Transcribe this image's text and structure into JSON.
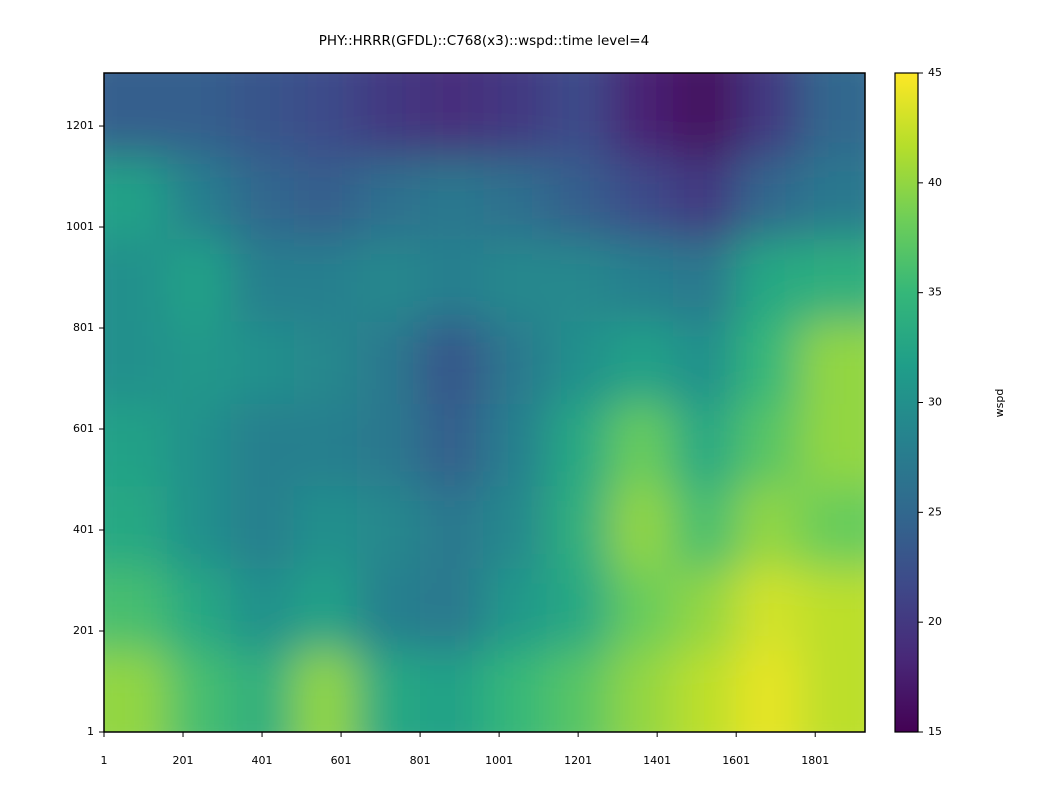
{
  "chart_data": {
    "type": "heatmap",
    "title": "PHY::HRRR(GFDL)::C768(x3)::wspd::time level=4",
    "x": [
      81,
      241,
      401,
      561,
      721,
      881,
      1041,
      1201,
      1361,
      1521,
      1681,
      1841
    ],
    "y": [
      82,
      245,
      408,
      571,
      734,
      897,
      1060,
      1223
    ],
    "z": [
      [
        40,
        36,
        34,
        40,
        33,
        32,
        35,
        37,
        40,
        42,
        44,
        42
      ],
      [
        36,
        33,
        30,
        32,
        28,
        27,
        31,
        33,
        38,
        40,
        43,
        42
      ],
      [
        33,
        30,
        28,
        30,
        29,
        27,
        29,
        34,
        40,
        36,
        40,
        38
      ],
      [
        32,
        30,
        28,
        28,
        27,
        24,
        28,
        33,
        38,
        33,
        37,
        40
      ],
      [
        30,
        31,
        30,
        29,
        27,
        23,
        27,
        30,
        32,
        30,
        35,
        40
      ],
      [
        30,
        32,
        28,
        28,
        29,
        28,
        29,
        29,
        28,
        27,
        33,
        34
      ],
      [
        32,
        28,
        25,
        24,
        26,
        27,
        26,
        24,
        22,
        20,
        25,
        27
      ],
      [
        24,
        24,
        23,
        22,
        20,
        19,
        20,
        22,
        18,
        16,
        20,
        25
      ]
    ],
    "xlim": [
      1,
      1927
    ],
    "ylim": [
      1,
      1306
    ],
    "xticks": [
      1,
      201,
      401,
      601,
      801,
      1001,
      1201,
      1401,
      1601,
      1801
    ],
    "yticks": [
      1,
      201,
      401,
      601,
      801,
      1001,
      1201
    ],
    "colorbar_label": "wspd",
    "clim": [
      15,
      45
    ],
    "cticks": [
      15,
      20,
      25,
      30,
      35,
      40,
      45
    ],
    "colormap": [
      "#440154",
      "#482878",
      "#3e4989",
      "#31688e",
      "#26828e",
      "#1f9e89",
      "#35b779",
      "#6ece58",
      "#b5de2b",
      "#fde725"
    ]
  }
}
